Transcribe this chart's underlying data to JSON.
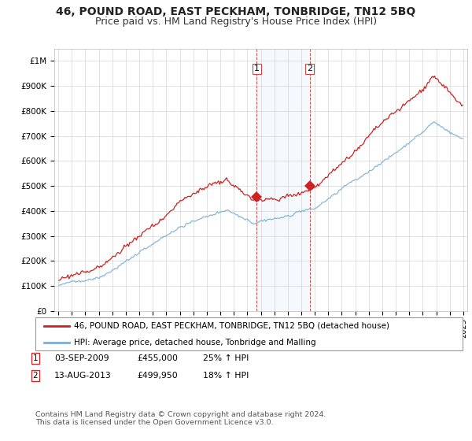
{
  "title": "46, POUND ROAD, EAST PECKHAM, TONBRIDGE, TN12 5BQ",
  "subtitle": "Price paid vs. HM Land Registry's House Price Index (HPI)",
  "ylim": [
    0,
    1050000
  ],
  "yticks": [
    0,
    100000,
    200000,
    300000,
    400000,
    500000,
    600000,
    700000,
    800000,
    900000,
    1000000
  ],
  "ytick_labels": [
    "£0",
    "£100K",
    "£200K",
    "£300K",
    "£400K",
    "£500K",
    "£600K",
    "£700K",
    "£800K",
    "£900K",
    "£1M"
  ],
  "hpi_color": "#7bafd4",
  "price_color": "#cc2222",
  "background_color": "#ffffff",
  "grid_color": "#cccccc",
  "purchase1_year": 2009,
  "purchase1_month": 9,
  "purchase1_price": 455000,
  "purchase2_year": 2013,
  "purchase2_month": 8,
  "purchase2_price": 499950,
  "legend1": "46, POUND ROAD, EAST PECKHAM, TONBRIDGE, TN12 5BQ (detached house)",
  "legend2": "HPI: Average price, detached house, Tonbridge and Malling",
  "footnote": "Contains HM Land Registry data © Crown copyright and database right 2024.\nThis data is licensed under the Open Government Licence v3.0.",
  "title_fontsize": 10,
  "subtitle_fontsize": 9,
  "start_year": 1995,
  "end_year": 2025
}
